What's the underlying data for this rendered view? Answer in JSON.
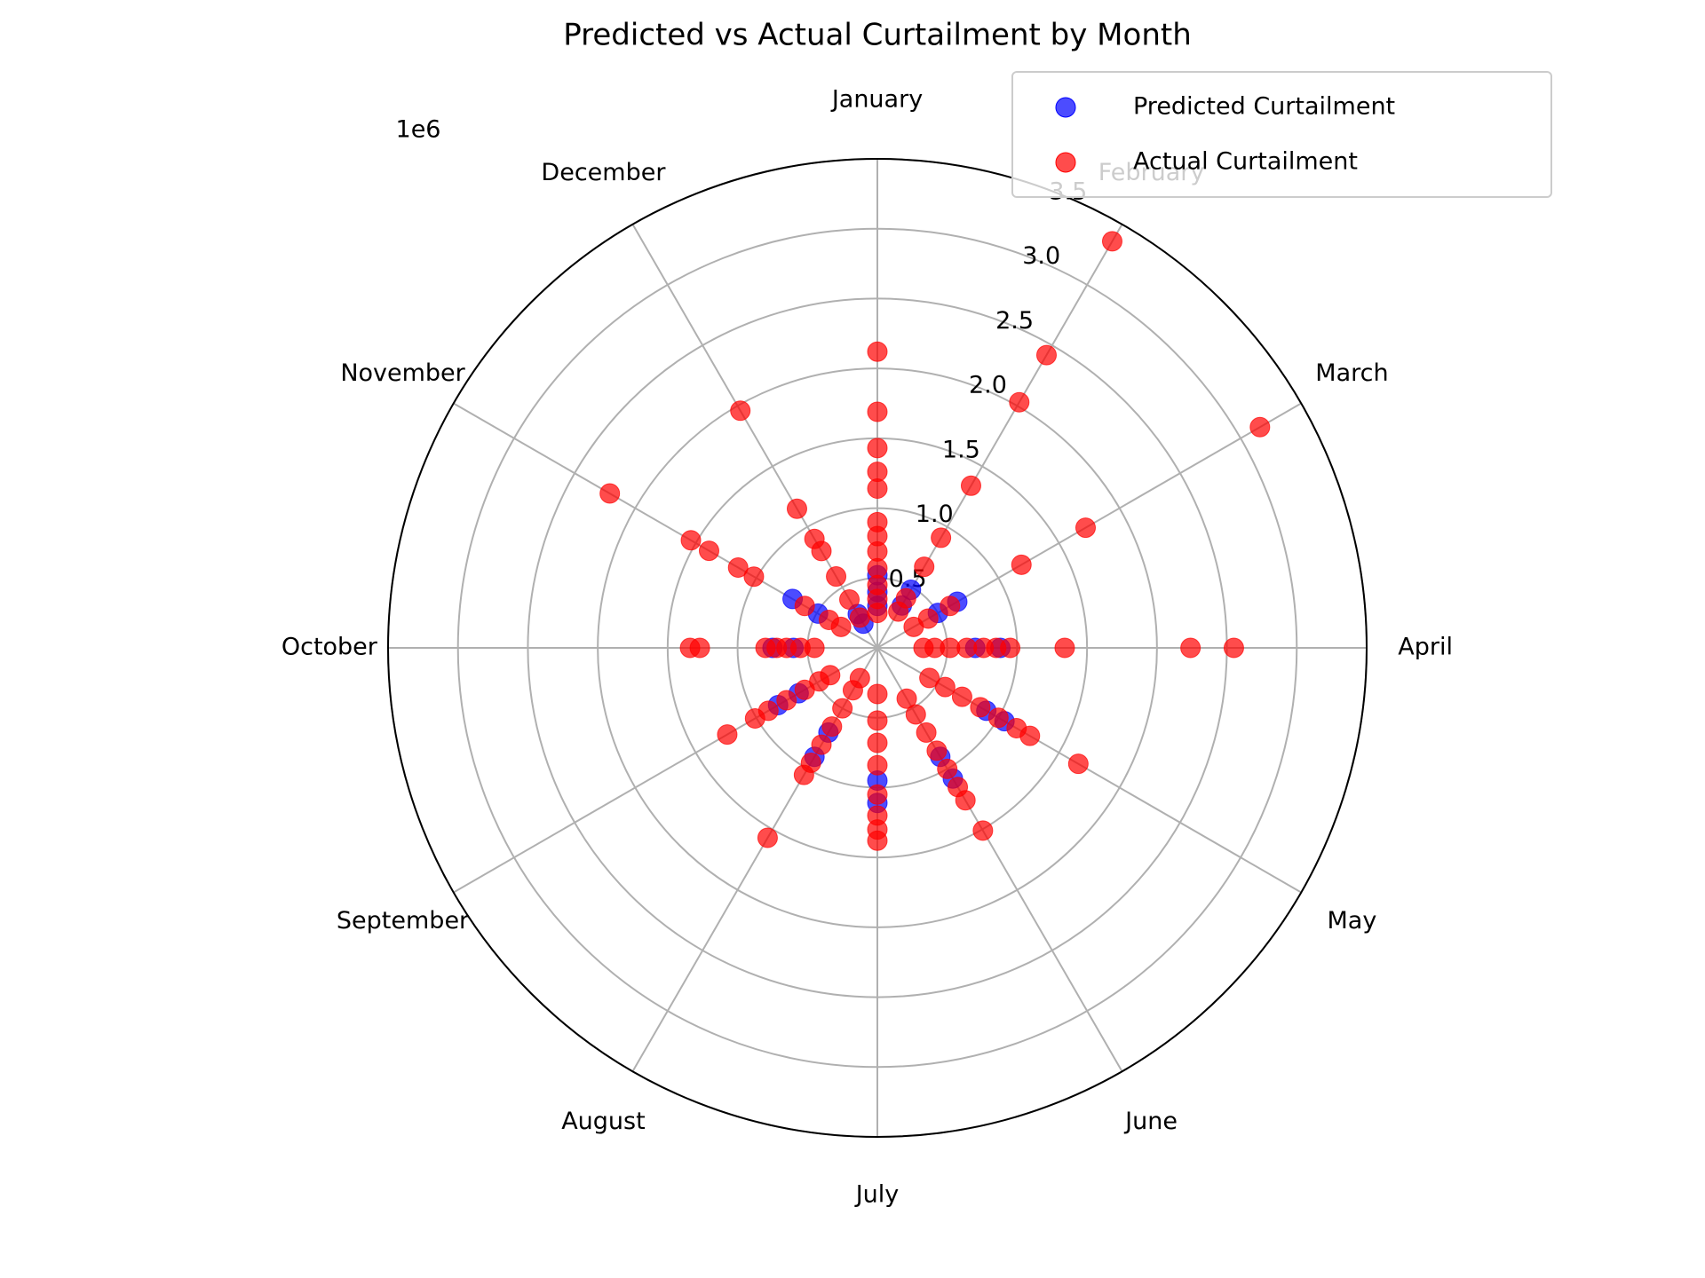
{
  "chart_data": {
    "type": "polar-scatter",
    "title": "Predicted vs Actual Curtailment by Month",
    "categories": [
      "January",
      "February",
      "March",
      "April",
      "May",
      "June",
      "July",
      "August",
      "September",
      "October",
      "November",
      "December"
    ],
    "ylim": [
      0,
      3500000
    ],
    "yticks": [
      {
        "value": 500000,
        "label": "0.5"
      },
      {
        "value": 1000000,
        "label": "1.0"
      },
      {
        "value": 1500000,
        "label": "1.5"
      },
      {
        "value": 2000000,
        "label": "2.0"
      },
      {
        "value": 2500000,
        "label": "2.5"
      },
      {
        "value": 3000000,
        "label": "3.0"
      },
      {
        "value": 3500000,
        "label": "3.5"
      }
    ],
    "y_offset_label": "1e6",
    "grid": true,
    "legend": "upper right",
    "series": [
      {
        "name": "Predicted Curtailment",
        "color": "#0000ff",
        "x": [
          "January",
          "January",
          "January",
          "February",
          "February",
          "March",
          "March",
          "April",
          "April",
          "May",
          "May",
          "June",
          "June",
          "July",
          "July",
          "August",
          "August",
          "September",
          "September",
          "October",
          "October",
          "November",
          "November",
          "December",
          "December"
        ],
        "values": [
          520000,
          400000,
          300000,
          480000,
          350000,
          660000,
          500000,
          880000,
          700000,
          1050000,
          900000,
          1080000,
          900000,
          1110000,
          950000,
          900000,
          700000,
          820000,
          650000,
          750000,
          600000,
          700000,
          490000,
          280000,
          200000
        ]
      },
      {
        "name": "Actual Curtailment",
        "color": "#ff0000",
        "x": [
          "January",
          "January",
          "January",
          "January",
          "January",
          "January",
          "January",
          "January",
          "January",
          "January",
          "January",
          "January",
          "February",
          "February",
          "February",
          "February",
          "February",
          "February",
          "February",
          "February",
          "March",
          "March",
          "March",
          "March",
          "March",
          "March",
          "April",
          "April",
          "April",
          "April",
          "April",
          "April",
          "April",
          "April",
          "April",
          "April",
          "May",
          "May",
          "May",
          "May",
          "May",
          "May",
          "May",
          "May",
          "June",
          "June",
          "June",
          "June",
          "June",
          "June",
          "June",
          "June",
          "July",
          "July",
          "July",
          "July",
          "July",
          "July",
          "July",
          "July",
          "August",
          "August",
          "August",
          "August",
          "August",
          "August",
          "August",
          "August",
          "September",
          "September",
          "September",
          "September",
          "September",
          "September",
          "September",
          "October",
          "October",
          "October",
          "October",
          "October",
          "October",
          "October",
          "November",
          "November",
          "November",
          "November",
          "November",
          "November",
          "November",
          "November",
          "December",
          "December",
          "December",
          "December",
          "December",
          "December",
          "December"
        ],
        "values": [
          2120000,
          1690000,
          1430000,
          1260000,
          1140000,
          900000,
          800000,
          690000,
          570000,
          450000,
          350000,
          250000,
          3360000,
          2420000,
          2030000,
          1340000,
          910000,
          670000,
          410000,
          300000,
          3160000,
          1720000,
          1190000,
          600000,
          420000,
          300000,
          2550000,
          2240000,
          1340000,
          950000,
          850000,
          760000,
          640000,
          520000,
          410000,
          330000,
          1660000,
          1260000,
          1150000,
          1000000,
          850000,
          700000,
          560000,
          430000,
          1510000,
          1260000,
          1150000,
          1000000,
          850000,
          700000,
          550000,
          420000,
          1380000,
          1300000,
          1200000,
          1050000,
          840000,
          680000,
          520000,
          330000,
          1570000,
          1050000,
          950000,
          800000,
          650000,
          500000,
          350000,
          250000,
          1240000,
          1010000,
          900000,
          750000,
          600000,
          480000,
          390000,
          1340000,
          1270000,
          800000,
          720000,
          650000,
          550000,
          450000,
          2210000,
          1540000,
          1390000,
          1150000,
          1020000,
          600000,
          400000,
          300000,
          1960000,
          1150000,
          900000,
          800000,
          590000,
          400000,
          250000
        ]
      }
    ]
  }
}
